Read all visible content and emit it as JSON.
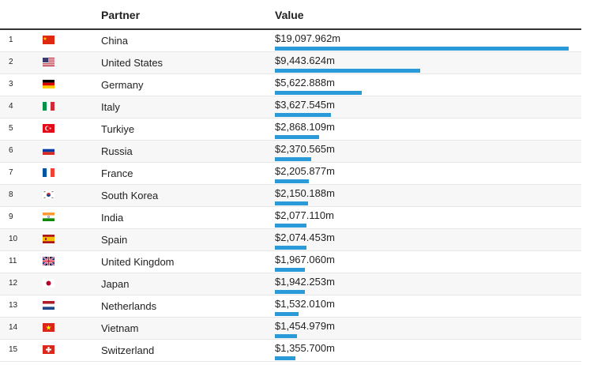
{
  "header": {
    "partner_label": "Partner",
    "value_label": "Value"
  },
  "bar_color": "#2b9ad8",
  "chart_data": {
    "type": "bar",
    "orientation": "horizontal",
    "max_value": 19097.962,
    "unit": "$m",
    "rows": [
      {
        "rank": "1",
        "flag": "china-flag-icon",
        "partner": "China",
        "value": 19097.962,
        "value_label": "$19,097.962m"
      },
      {
        "rank": "2",
        "flag": "united-states-flag-icon",
        "partner": "United States",
        "value": 9443.624,
        "value_label": "$9,443.624m"
      },
      {
        "rank": "3",
        "flag": "germany-flag-icon",
        "partner": "Germany",
        "value": 5622.888,
        "value_label": "$5,622.888m"
      },
      {
        "rank": "4",
        "flag": "italy-flag-icon",
        "partner": "Italy",
        "value": 3627.545,
        "value_label": "$3,627.545m"
      },
      {
        "rank": "5",
        "flag": "turkiye-flag-icon",
        "partner": "Turkiye",
        "value": 2868.109,
        "value_label": "$2,868.109m"
      },
      {
        "rank": "6",
        "flag": "russia-flag-icon",
        "partner": "Russia",
        "value": 2370.565,
        "value_label": "$2,370.565m"
      },
      {
        "rank": "7",
        "flag": "france-flag-icon",
        "partner": "France",
        "value": 2205.877,
        "value_label": "$2,205.877m"
      },
      {
        "rank": "8",
        "flag": "south-korea-flag-icon",
        "partner": "South Korea",
        "value": 2150.188,
        "value_label": "$2,150.188m"
      },
      {
        "rank": "9",
        "flag": "india-flag-icon",
        "partner": "India",
        "value": 2077.11,
        "value_label": "$2,077.110m"
      },
      {
        "rank": "10",
        "flag": "spain-flag-icon",
        "partner": "Spain",
        "value": 2074.453,
        "value_label": "$2,074.453m"
      },
      {
        "rank": "11",
        "flag": "united-kingdom-flag-icon",
        "partner": "United Kingdom",
        "value": 1967.06,
        "value_label": "$1,967.060m"
      },
      {
        "rank": "12",
        "flag": "japan-flag-icon",
        "partner": "Japan",
        "value": 1942.253,
        "value_label": "$1,942.253m"
      },
      {
        "rank": "13",
        "flag": "netherlands-flag-icon",
        "partner": "Netherlands",
        "value": 1532.01,
        "value_label": "$1,532.010m"
      },
      {
        "rank": "14",
        "flag": "vietnam-flag-icon",
        "partner": "Vietnam",
        "value": 1454.979,
        "value_label": "$1,454.979m"
      },
      {
        "rank": "15",
        "flag": "switzerland-flag-icon",
        "partner": "Switzerland",
        "value": 1355.7,
        "value_label": "$1,355.700m"
      }
    ]
  }
}
